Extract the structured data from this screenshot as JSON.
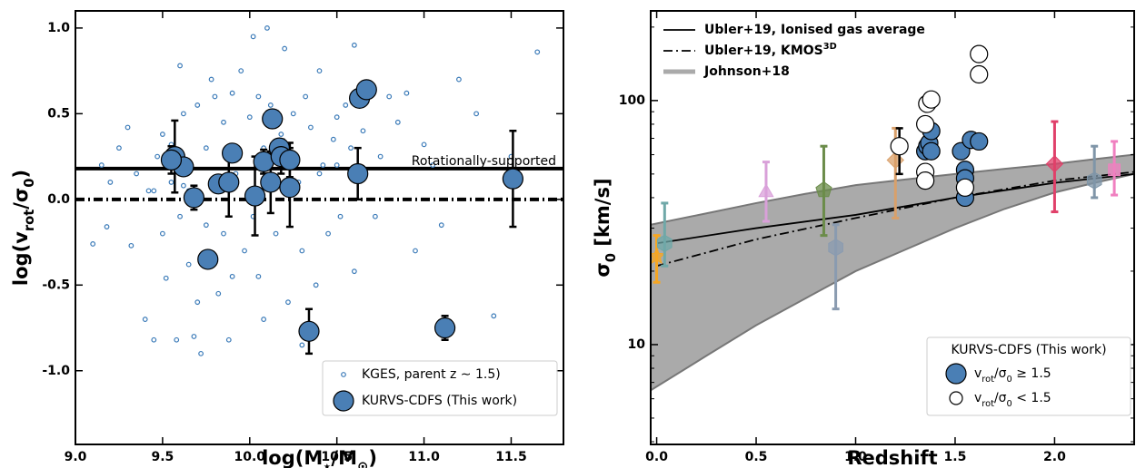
{
  "chart_data": [
    {
      "type": "scatter",
      "x_label": [
        "log(M",
        "⋆",
        "/M",
        "⊙",
        ")"
      ],
      "y_label": [
        "log(v",
        "rot",
        "/σ",
        "0",
        ")"
      ],
      "xlim": [
        9.0,
        11.8
      ],
      "ylim": [
        -1.43,
        1.1
      ],
      "xticks": [
        {
          "value": 9.0,
          "label": "9.0"
        },
        {
          "value": 9.5,
          "label": "9.5"
        },
        {
          "value": 10.0,
          "label": "10.0"
        },
        {
          "value": 10.5,
          "label": "10.5"
        },
        {
          "value": 11.0,
          "label": "11.0"
        },
        {
          "value": 11.5,
          "label": "11.5"
        }
      ],
      "yticks": [
        {
          "value": 1.0,
          "label": "1.0"
        },
        {
          "value": 0.5,
          "label": "0.5"
        },
        {
          "value": 0.0,
          "label": "0.0"
        },
        {
          "value": -0.5,
          "label": "-0.5"
        },
        {
          "value": -1.0,
          "label": "-1.0"
        }
      ],
      "hlines": [
        {
          "value": 0.18,
          "style": "solid",
          "label": "Rotationally-supported"
        },
        {
          "value": 0,
          "style": "dashdot"
        }
      ],
      "series": [
        {
          "name": "KGES, parent z  ∼  1.5)",
          "marker": "small-open",
          "color": "#3a7ab8",
          "x": [
            9.1,
            9.15,
            9.18,
            9.2,
            9.25,
            9.3,
            9.32,
            9.35,
            9.4,
            9.42,
            9.45,
            9.47,
            9.5,
            9.5,
            9.52,
            9.55,
            9.58,
            9.6,
            9.6,
            9.62,
            9.65,
            9.65,
            9.68,
            9.7,
            9.72,
            9.75,
            9.75,
            9.78,
            9.8,
            9.82,
            9.85,
            9.88,
            9.9,
            9.92,
            9.95,
            9.97,
            10.0,
            10.02,
            10.05,
            10.05,
            10.08,
            10.1,
            10.12,
            10.15,
            10.18,
            10.2,
            10.22,
            10.25,
            10.28,
            10.3,
            10.32,
            10.35,
            10.38,
            10.4,
            10.42,
            10.45,
            10.48,
            10.5,
            10.52,
            10.55,
            10.58,
            10.6,
            10.65,
            10.7,
            10.72,
            10.75,
            10.8,
            10.85,
            10.9,
            10.95,
            11.0,
            11.05,
            11.1,
            11.2,
            11.3,
            11.4,
            11.5,
            11.65,
            9.55,
            9.7,
            9.9,
            10.08,
            10.3,
            10.5,
            9.62,
            10.02,
            10.4,
            9.85,
            10.6,
            9.45
          ],
          "values": [
            -0.26,
            0.2,
            -0.16,
            0.1,
            0.3,
            0.42,
            -0.27,
            0.15,
            -0.7,
            0.05,
            -0.82,
            0.25,
            -0.2,
            0.38,
            -0.46,
            0.32,
            -0.82,
            0.78,
            -0.1,
            0.5,
            0.05,
            -0.38,
            -0.8,
            0.55,
            -0.9,
            0.3,
            -0.15,
            0.7,
            0.6,
            -0.55,
            0.45,
            -0.82,
            0.62,
            0.15,
            0.75,
            -0.3,
            0.48,
            0.95,
            0.6,
            -0.45,
            0.3,
            1.0,
            0.55,
            -0.2,
            0.38,
            0.88,
            -0.6,
            0.5,
            0.1,
            -0.3,
            0.6,
            0.42,
            -0.5,
            0.75,
            0.2,
            -0.2,
            0.35,
            0.48,
            -0.1,
            0.55,
            0.3,
            -0.42,
            0.4,
            0.65,
            -0.1,
            0.25,
            0.6,
            0.45,
            0.62,
            -0.3,
            0.32,
            0.2,
            -0.15,
            0.7,
            0.5,
            -0.68,
            0.25,
            0.86,
            0.1,
            -0.6,
            -0.45,
            -0.7,
            -0.85,
            0.2,
            0.08,
            -0.1,
            0.15,
            -0.2,
            0.9,
            0.05
          ]
        },
        {
          "name": "KURVS-CDFS (This work)",
          "marker": "big-filled",
          "color": "#4a7fb5",
          "x": [
            9.57,
            9.62,
            9.55,
            9.68,
            9.76,
            9.82,
            9.88,
            9.9,
            10.03,
            10.08,
            10.12,
            10.13,
            10.17,
            10.18,
            10.23,
            10.23,
            10.34,
            10.62,
            10.63,
            10.67,
            11.12,
            11.51
          ],
          "values": [
            0.25,
            0.19,
            0.23,
            0.01,
            -0.35,
            0.09,
            0.1,
            0.27,
            0.02,
            0.22,
            0.1,
            0.47,
            0.3,
            0.25,
            0.23,
            0.07,
            -0.77,
            0.15,
            0.59,
            0.64,
            -0.75,
            0.12
          ],
          "errors": [
            0.21,
            null,
            0.08,
            0.07,
            null,
            null,
            0.2,
            null,
            0.23,
            0.07,
            0.18,
            null,
            null,
            0.1,
            0.1,
            0.23,
            0.13,
            0.15,
            0.05,
            null,
            0.07,
            0.28
          ]
        }
      ]
    },
    {
      "type": "scatter",
      "ylog": true,
      "x_label": [
        "Redshift"
      ],
      "y_label": [
        "σ",
        "0",
        " [km/s]"
      ],
      "xlim": [
        -0.03,
        2.4
      ],
      "ylim": [
        3.9,
        233
      ],
      "xticks": [
        {
          "value": 0.0,
          "label": "0.0"
        },
        {
          "value": 0.5,
          "label": "0.5"
        },
        {
          "value": 1.0,
          "label": "1.0"
        },
        {
          "value": 1.5,
          "label": "1.5"
        },
        {
          "value": 2.0,
          "label": "2.0"
        }
      ],
      "yticks": [
        10,
        100
      ],
      "bands": [
        {
          "name": "Johnson+18",
          "color": "#aaaaaa",
          "x": [
            -0.03,
            0.25,
            0.5,
            0.75,
            1.0,
            1.25,
            1.5,
            1.75,
            2.0,
            2.2,
            2.4
          ],
          "lower": [
            6.5,
            9,
            12,
            15.5,
            20,
            24.5,
            30,
            36,
            42,
            46,
            50
          ],
          "upper": [
            31,
            34.5,
            38,
            41.5,
            45,
            47.5,
            50,
            52.5,
            55,
            57.5,
            60
          ]
        }
      ],
      "lines": [
        {
          "name": "Ubler+19, Ionised gas average",
          "style": "solid",
          "x": [
            0,
            0.5,
            1.0,
            1.5,
            2.0,
            2.4
          ],
          "values": [
            26,
            30,
            34,
            40,
            46,
            50
          ]
        },
        {
          "name": "Ubler+19, KMOS",
          "name_sup": "3D",
          "style": "dashdot",
          "x": [
            0,
            0.5,
            1.0,
            1.5,
            2.0,
            2.4
          ],
          "values": [
            21,
            27,
            33,
            40,
            47,
            51
          ]
        }
      ],
      "points": [
        {
          "marker": "star",
          "color": "#f5a623",
          "x": [
            0.0
          ],
          "values": [
            23
          ],
          "lower": [
            18
          ],
          "upper": [
            28
          ]
        },
        {
          "marker": "hexagon",
          "color": "#6fa8a8",
          "x": [
            0.04
          ],
          "values": [
            26
          ],
          "lower": [
            21
          ],
          "upper": [
            38
          ]
        },
        {
          "marker": "triangle",
          "color": "#d9a0d9",
          "x": [
            0.55
          ],
          "values": [
            42
          ],
          "lower": [
            32
          ],
          "upper": [
            56
          ]
        },
        {
          "marker": "pentagon",
          "color": "#6b8c4a",
          "x": [
            0.84
          ],
          "values": [
            43
          ],
          "lower": [
            28
          ],
          "upper": [
            65
          ]
        },
        {
          "marker": "hexagon",
          "color": "#8a9bb0",
          "x": [
            0.9
          ],
          "values": [
            25
          ],
          "lower": [
            14
          ],
          "upper": [
            31
          ]
        },
        {
          "marker": "diamond",
          "color": "#d9a06a",
          "x": [
            1.2
          ],
          "values": [
            57
          ],
          "lower": [
            33
          ],
          "upper": [
            77
          ]
        },
        {
          "marker": "diamond",
          "color": "#e0406a",
          "x": [
            2.0
          ],
          "values": [
            55
          ],
          "lower": [
            35
          ],
          "upper": [
            82
          ]
        },
        {
          "marker": "hexagon",
          "color": "#7f95a8",
          "x": [
            2.2
          ],
          "values": [
            47
          ],
          "lower": [
            40
          ],
          "upper": [
            65
          ]
        },
        {
          "marker": "square",
          "color": "#f080c0",
          "x": [
            2.3
          ],
          "values": [
            52
          ],
          "lower": [
            41
          ],
          "upper": [
            68
          ]
        }
      ],
      "legend_title": "KURVS-CDFS (This work)",
      "series": [
        {
          "name": [
            "v",
            "rot",
            "/σ",
            "0",
            " ≥ 1.5"
          ],
          "color": "#4a7fb5",
          "x": [
            1.35,
            1.36,
            1.37,
            1.38,
            1.38,
            1.53,
            1.55,
            1.55,
            1.55,
            1.58,
            1.62
          ],
          "values": [
            62,
            65,
            67,
            75,
            62,
            62,
            52,
            48,
            40,
            69,
            68
          ]
        },
        {
          "name": [
            "v",
            "rot",
            "/σ",
            "0",
            " < 1.5"
          ],
          "color": "#ffffff",
          "x": [
            1.35,
            1.36,
            1.38,
            1.35,
            1.35,
            1.22,
            1.62,
            1.62,
            1.55
          ],
          "values": [
            80,
            97,
            101,
            51,
            47,
            65,
            155,
            128,
            44
          ],
          "lower": [
            null,
            null,
            null,
            null,
            null,
            50,
            null,
            120,
            null
          ],
          "upper": [
            null,
            null,
            null,
            null,
            null,
            77,
            null,
            136,
            null
          ]
        }
      ]
    }
  ]
}
